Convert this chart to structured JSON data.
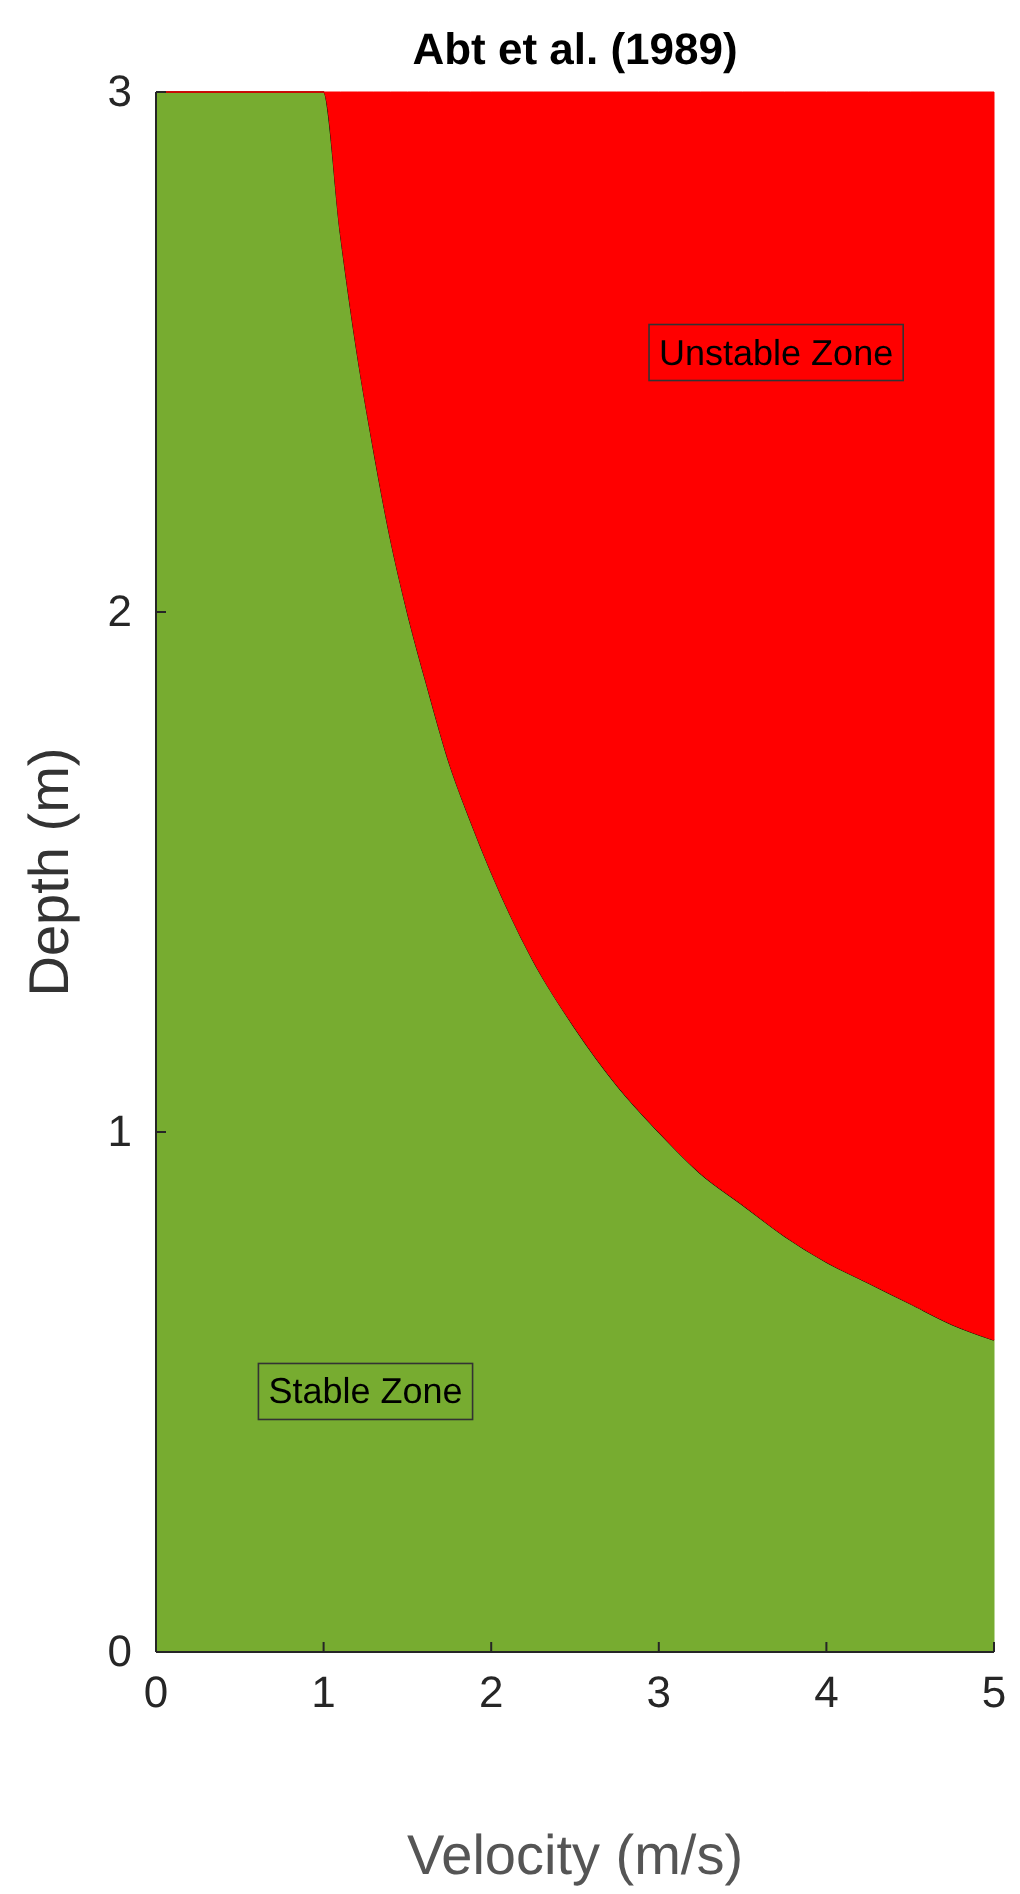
{
  "chart_data": {
    "type": "area",
    "title": "Abt et al. (1989)",
    "xlabel": "Velocity (m/s)",
    "ylabel": "Depth (m)",
    "stacked": true,
    "x": [
      0,
      1,
      1.1,
      1.2,
      1.3,
      1.4,
      1.5,
      1.625,
      1.75,
      1.875,
      2,
      2.25,
      2.5,
      2.75,
      3,
      3.25,
      3.5,
      3.75,
      4,
      4.25,
      4.5,
      4.75,
      5
    ],
    "series": [
      {
        "color": "#77ac30",
        "values": [
          3,
          3,
          2.73,
          2.5,
          2.31,
          2.14,
          2,
          1.85,
          1.71,
          1.6,
          1.5,
          1.33,
          1.2,
          1.09,
          1,
          0.92,
          0.86,
          0.8,
          0.75,
          0.71,
          0.67,
          0.63,
          0.6
        ]
      },
      {
        "color": "#ff0000",
        "values": [
          0,
          0,
          0.27,
          0.5,
          0.69,
          0.86,
          1,
          1.15,
          1.29,
          1.4,
          1.5,
          1.67,
          1.8,
          1.91,
          2,
          2.08,
          2.14,
          2.2,
          2.25,
          2.29,
          2.33,
          2.37,
          2.4
        ]
      }
    ],
    "xlim": [
      0,
      5
    ],
    "ylim": [
      0,
      3
    ],
    "xticks": [
      0,
      1,
      2,
      3,
      4,
      5
    ],
    "yticks": [
      0,
      1,
      2,
      3
    ],
    "grid": false,
    "annotations": [
      "Stable Zone",
      "Unstable Zone"
    ]
  }
}
